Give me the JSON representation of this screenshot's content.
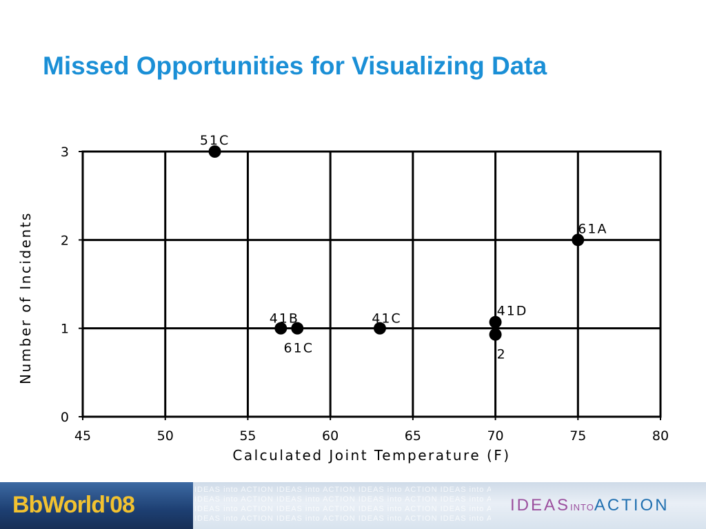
{
  "slide": {
    "title": "Missed Opportunities for Visualizing Data",
    "title_color": "#1a8fd6"
  },
  "chart_data": {
    "type": "scatter",
    "title": "",
    "xlabel": "Calculated Joint Temperature (F)",
    "ylabel": "Number of Incidents",
    "xlim": [
      45,
      80
    ],
    "ylim": [
      0,
      3
    ],
    "xticks": [
      45,
      50,
      55,
      60,
      65,
      70,
      75,
      80
    ],
    "yticks": [
      0,
      1,
      2,
      3
    ],
    "grid": true,
    "points": [
      {
        "x": 53,
        "y": 3,
        "label": "51C"
      },
      {
        "x": 57,
        "y": 1,
        "label": "41B"
      },
      {
        "x": 58,
        "y": 1,
        "label": "61C"
      },
      {
        "x": 63,
        "y": 1,
        "label": "41C"
      },
      {
        "x": 70,
        "y": 1,
        "label": "41D"
      },
      {
        "x": 70,
        "y": 1,
        "label": "2"
      },
      {
        "x": 75,
        "y": 2,
        "label": "61A"
      }
    ]
  },
  "footer": {
    "logo_text": "BbWorld'08",
    "pattern_text": "IDEAS into ACTION IDEAS into ACTION IDEAS into ACTION IDEAS into ACTION",
    "tagline_ideas": "IDEAS",
    "tagline_into": "INTO",
    "tagline_action": "ACTION"
  }
}
